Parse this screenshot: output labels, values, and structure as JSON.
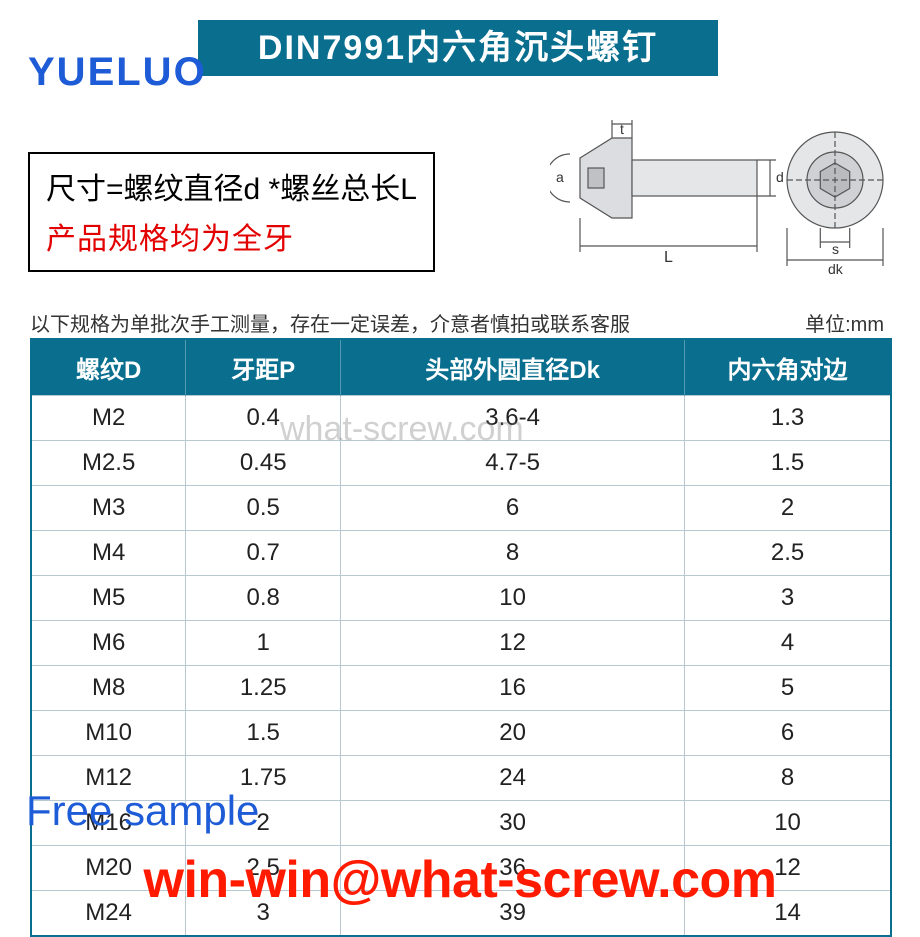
{
  "title": "DIN7991内六角沉头螺钉",
  "brand": "YUELUO",
  "desc": {
    "line1": "尺寸=螺纹直径d *螺丝总长L",
    "line2": "产品规格均为全牙"
  },
  "diagram": {
    "labels": {
      "t": "t",
      "a": "a",
      "d": "d",
      "L": "L",
      "s": "s",
      "dk": "dk"
    },
    "stroke": "#444444",
    "fill": "#d8dadd"
  },
  "note": "以下规格为单批次手工测量，存在一定误差，介意者慎拍或联系客服",
  "unit": "单位:mm",
  "watermark": "what-screw.com",
  "free_sample": "Free sample",
  "email": "win-win@what-screw.com",
  "colors": {
    "header_bg": "#0a6f8f",
    "table_border": "#b9c9d1",
    "brand": "#1d5cd6",
    "red_text": "#e30000",
    "email": "#ff1a00",
    "background": "#ffffff"
  },
  "table": {
    "columns": [
      "螺纹D",
      "牙距P",
      "头部外圆直径Dk",
      "内六角对边"
    ],
    "col_widths_pct": [
      18,
      18,
      40,
      24
    ],
    "header_fontsize": 24,
    "cell_fontsize": 24,
    "rows": [
      [
        "M2",
        "0.4",
        "3.6-4",
        "1.3"
      ],
      [
        "M2.5",
        "0.45",
        "4.7-5",
        "1.5"
      ],
      [
        "M3",
        "0.5",
        "6",
        "2"
      ],
      [
        "M4",
        "0.7",
        "8",
        "2.5"
      ],
      [
        "M5",
        "0.8",
        "10",
        "3"
      ],
      [
        "M6",
        "1",
        "12",
        "4"
      ],
      [
        "M8",
        "1.25",
        "16",
        "5"
      ],
      [
        "M10",
        "1.5",
        "20",
        "6"
      ],
      [
        "M12",
        "1.75",
        "24",
        "8"
      ],
      [
        "M16",
        "2",
        "30",
        "10"
      ],
      [
        "M20",
        "2.5",
        "36",
        "12"
      ],
      [
        "M24",
        "3",
        "39",
        "14"
      ]
    ]
  }
}
